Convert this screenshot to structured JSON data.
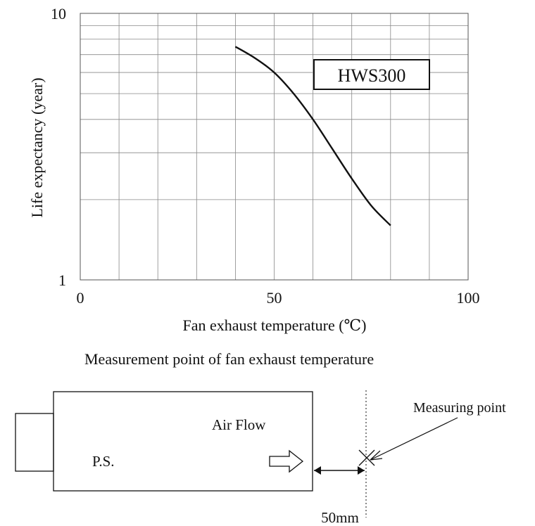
{
  "chart_data": {
    "type": "line",
    "title": "",
    "xlabel": "Fan exhaust temperature (℃)",
    "ylabel": "Life expectancy (year)",
    "xlim": [
      0,
      100
    ],
    "ylim": [
      1,
      10
    ],
    "yscale": "log",
    "grid": true,
    "x_ticks": [
      "0",
      "50",
      "100"
    ],
    "y_ticks": [
      "1",
      "10"
    ],
    "series": [
      {
        "name": "HWS300",
        "x": [
          40,
          45,
          50,
          55,
          60,
          65,
          70,
          75,
          80
        ],
        "y": [
          7.5,
          6.8,
          6.0,
          5.0,
          4.0,
          3.1,
          2.4,
          1.9,
          1.6
        ]
      }
    ],
    "legend": "upper right, boxed label"
  },
  "diagram": {
    "heading": "Measurement point of fan exhaust temperature",
    "ps_label": "P.S.",
    "airflow_label": "Air Flow",
    "measuring_point_label": "Measuring point",
    "distance_label": "50mm"
  }
}
